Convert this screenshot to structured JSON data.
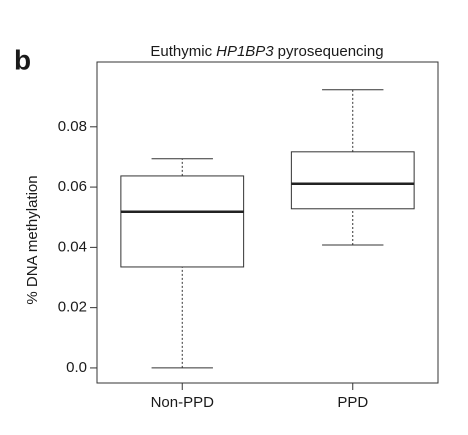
{
  "panel_label": "b",
  "chart_data": {
    "type": "box",
    "title": [
      "Euthymic",
      "HP1BP3",
      "pyrosequencing"
    ],
    "y_label": "% DNA methylation",
    "categories": [
      "Non-PPD",
      "PPD"
    ],
    "stats": [
      {
        "min": 0.0,
        "q1": 0.0335,
        "median": 0.0518,
        "q3": 0.0637,
        "max": 0.0694
      },
      {
        "min": 0.0408,
        "q1": 0.0528,
        "median": 0.0611,
        "q3": 0.0717,
        "max": 0.0923
      }
    ],
    "ylim": [
      -0.005,
      0.1015
    ],
    "yticks": [
      {
        "value": 0,
        "label": "0.0"
      },
      0.02,
      0.04,
      0.06,
      0.08
    ],
    "color": "#ffffff"
  }
}
